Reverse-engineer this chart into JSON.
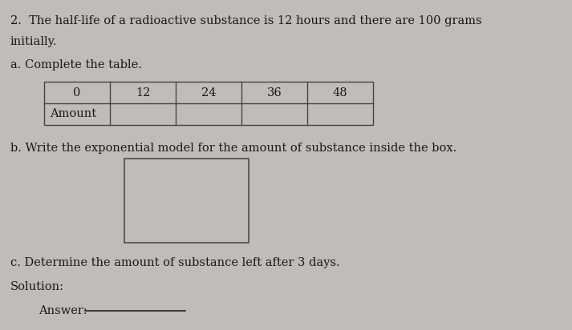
{
  "background_color": "#c0bdb8",
  "text_color": "#1a1a1a",
  "table_edge_color": "#444444",
  "box_edge_color": "#555555",
  "line_color": "#222222",
  "title_line1": "2.  The half-life of a radioactive substance is 12 hours and there are 100 grams",
  "title_line2": "    initially.",
  "part_a": "a. Complete the table.",
  "table_headers": [
    "0",
    "12",
    "24",
    "36",
    "48"
  ],
  "table_row_label": "Amount",
  "part_b": "b. Write the exponential model for the amount of substance inside the box.",
  "part_c": "c. Determine the amount of substance left after 3 days.",
  "solution": "Solution:",
  "answer": "Answer:",
  "font_size": 10.5,
  "font_size_small": 9.5
}
